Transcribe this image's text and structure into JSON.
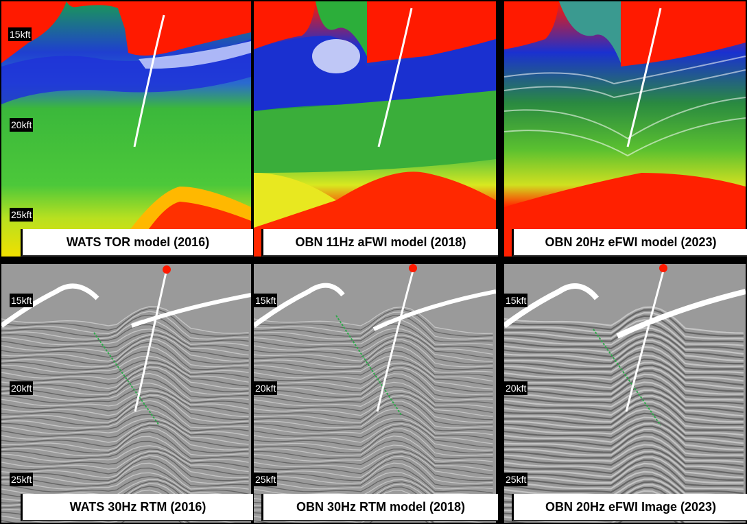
{
  "panels": [
    {
      "caption": "WATS TOR model (2016)",
      "kind": "velocity",
      "depths": [
        "15kft",
        "20kft",
        "25kft"
      ]
    },
    {
      "caption": "OBN 11Hz aFWI model (2018)",
      "kind": "velocity",
      "depths": []
    },
    {
      "caption": "OBN 20Hz eFWI model (2023)",
      "kind": "velocity",
      "depths": []
    },
    {
      "caption": "WATS 30Hz RTM (2016)",
      "kind": "seismic",
      "depths": [
        "15kft",
        "20kft",
        "25kft"
      ]
    },
    {
      "caption": "OBN 30Hz RTM model (2018)",
      "kind": "seismic",
      "depths": [
        "15kft",
        "20kft",
        "25kft"
      ]
    },
    {
      "caption": "OBN 20Hz eFWI Image (2023)",
      "kind": "seismic",
      "depths": [
        "15kft",
        "20kft",
        "25kft"
      ]
    }
  ],
  "colors": {
    "salt": "#ff1a00",
    "blue": "#1434d2",
    "green": "#22b022",
    "yellow": "#f2f200",
    "seismic_bg": "#9a9a9a",
    "well": "#ffffff",
    "fault": "#2ea84a"
  }
}
